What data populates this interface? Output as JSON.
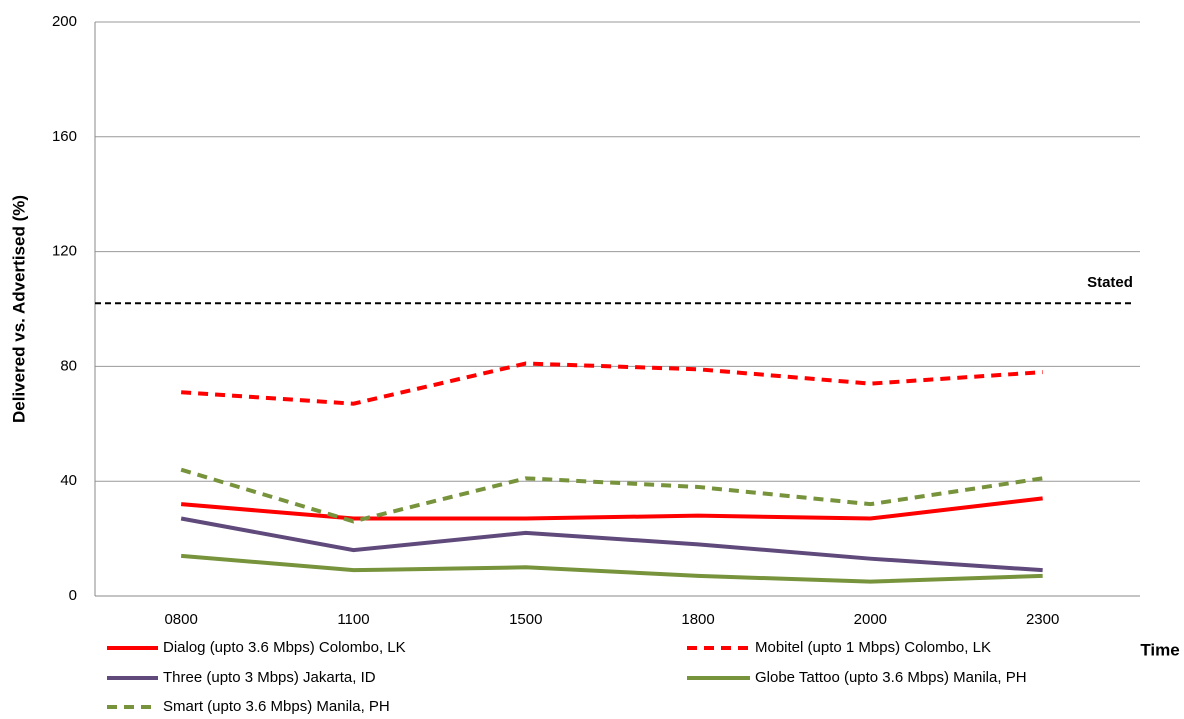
{
  "chart_data": {
    "type": "line",
    "y_label": "Delivered vs. Advertised (%)",
    "x_label": "Time",
    "categories": [
      "0800",
      "1100",
      "1500",
      "1800",
      "2000",
      "2300"
    ],
    "series": [
      {
        "name": "Dialog (upto 3.6 Mbps) Colombo, LK",
        "color": "#ff0000",
        "dashed": false,
        "values": [
          32,
          27,
          27,
          28,
          27,
          34
        ]
      },
      {
        "name": "Mobitel (upto 1 Mbps) Colombo, LK",
        "color": "#ff0000",
        "dashed": true,
        "values": [
          71,
          67,
          81,
          79,
          74,
          78
        ]
      },
      {
        "name": "Three (upto 3 Mbps) Jakarta, ID",
        "color": "#604a7b",
        "dashed": false,
        "values": [
          27,
          16,
          22,
          18,
          13,
          9
        ]
      },
      {
        "name": "Globe Tattoo (upto 3.6 Mbps) Manila, PH",
        "color": "#77933c",
        "dashed": false,
        "values": [
          14,
          9,
          10,
          7,
          5,
          7
        ]
      },
      {
        "name": "Smart (upto 3.6 Mbps) Manila, PH",
        "color": "#77933c",
        "dashed": true,
        "values": [
          44,
          26,
          41,
          38,
          32,
          41
        ]
      }
    ],
    "reference_line": {
      "label": "Stated",
      "value": 102,
      "color": "#000000"
    },
    "ylim": [
      0,
      200
    ],
    "yticks": [
      0,
      40,
      80,
      120,
      160,
      200
    ],
    "grid": true
  }
}
